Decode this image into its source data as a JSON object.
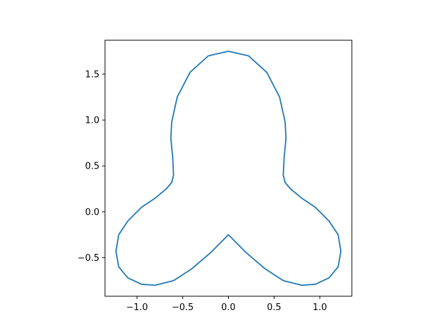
{
  "chart_data": {
    "type": "line",
    "title": "",
    "xlabel": "",
    "ylabel": "",
    "xlim": [
      -1.35,
      1.35
    ],
    "ylim": [
      -0.92,
      1.87
    ],
    "xticks": [
      -1.0,
      -0.5,
      0.0,
      0.5,
      1.0
    ],
    "yticks": [
      -0.5,
      0.0,
      0.5,
      1.0,
      1.5
    ],
    "xtick_labels": [
      "−1.0",
      "−0.5",
      "0.0",
      "0.5",
      "1.0"
    ],
    "ytick_labels": [
      "−0.5",
      "0.0",
      "0.5",
      "1.0",
      "1.5"
    ],
    "grid": false,
    "legend": "none",
    "aspect": "equal",
    "series": [
      {
        "color": "#1f77b4",
        "x": [
          0.0,
          0.22,
          0.42,
          0.56,
          0.62,
          0.63,
          0.61,
          0.6,
          0.62,
          0.68,
          0.8,
          0.95,
          1.1,
          1.2,
          1.23,
          1.2,
          1.1,
          0.95,
          0.8,
          0.6,
          0.4,
          0.2,
          0.08,
          0.0,
          -0.08,
          -0.2,
          -0.4,
          -0.6,
          -0.8,
          -0.95,
          -1.1,
          -1.2,
          -1.23,
          -1.2,
          -1.1,
          -0.95,
          -0.8,
          -0.68,
          -0.62,
          -0.6,
          -0.61,
          -0.63,
          -0.62,
          -0.56,
          -0.42,
          -0.22,
          0.0
        ],
        "y": [
          1.75,
          1.7,
          1.52,
          1.25,
          0.98,
          0.8,
          0.6,
          0.4,
          0.32,
          0.25,
          0.15,
          0.05,
          -0.1,
          -0.25,
          -0.43,
          -0.6,
          -0.72,
          -0.79,
          -0.8,
          -0.75,
          -0.62,
          -0.45,
          -0.33,
          -0.25,
          -0.33,
          -0.45,
          -0.62,
          -0.75,
          -0.8,
          -0.79,
          -0.72,
          -0.6,
          -0.43,
          -0.25,
          -0.1,
          0.05,
          0.15,
          0.25,
          0.32,
          0.4,
          0.6,
          0.8,
          0.98,
          1.25,
          1.52,
          1.7,
          1.75
        ]
      }
    ]
  }
}
